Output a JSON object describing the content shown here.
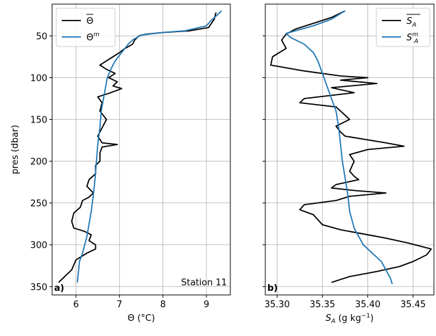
{
  "chart_data": [
    {
      "type": "line",
      "panel_tag": "a)",
      "annotation": "Station 11",
      "xlabel": "Θ (°C)",
      "ylabel": "pres (dbar)",
      "xlim": [
        5.45,
        9.55
      ],
      "ylim": [
        360,
        12
      ],
      "xticks": [
        6,
        7,
        8,
        9
      ],
      "xtick_labels": [
        "6",
        "7",
        "8",
        "9"
      ],
      "yticks": [
        50,
        100,
        150,
        200,
        250,
        300,
        350
      ],
      "ytick_labels": [
        "50",
        "100",
        "150",
        "200",
        "250",
        "300",
        "350"
      ],
      "grid": true,
      "legend_position": "top-left",
      "series": [
        {
          "name": "Θ",
          "name_overline": true,
          "name_sup": "",
          "color": "#000000",
          "points": [
            [
              9.22,
              22
            ],
            [
              9.18,
              30
            ],
            [
              9.05,
              40
            ],
            [
              8.6,
              44
            ],
            [
              8.0,
              46
            ],
            [
              7.6,
              48
            ],
            [
              7.45,
              50
            ],
            [
              7.35,
              55
            ],
            [
              7.3,
              60
            ],
            [
              7.2,
              63
            ],
            [
              7.1,
              66
            ],
            [
              7.0,
              70
            ],
            [
              6.85,
              75
            ],
            [
              6.7,
              80
            ],
            [
              6.55,
              85
            ],
            [
              6.7,
              90
            ],
            [
              6.9,
              95
            ],
            [
              6.75,
              100
            ],
            [
              6.95,
              105
            ],
            [
              6.85,
              110
            ],
            [
              7.05,
              113
            ],
            [
              6.8,
              118
            ],
            [
              6.5,
              123
            ],
            [
              6.6,
              130
            ],
            [
              6.55,
              140
            ],
            [
              6.7,
              150
            ],
            [
              6.6,
              160
            ],
            [
              6.5,
              170
            ],
            [
              6.6,
              178
            ],
            [
              6.95,
              180
            ],
            [
              6.6,
              183
            ],
            [
              6.55,
              190
            ],
            [
              6.55,
              200
            ],
            [
              6.45,
              205
            ],
            [
              6.45,
              215
            ],
            [
              6.3,
              222
            ],
            [
              6.25,
              230
            ],
            [
              6.4,
              238
            ],
            [
              6.3,
              243
            ],
            [
              6.15,
              247
            ],
            [
              6.1,
              255
            ],
            [
              5.95,
              262
            ],
            [
              5.9,
              272
            ],
            [
              5.95,
              280
            ],
            [
              6.2,
              284
            ],
            [
              6.35,
              288
            ],
            [
              6.3,
              295
            ],
            [
              6.45,
              300
            ],
            [
              6.45,
              305
            ],
            [
              6.25,
              310
            ],
            [
              6.0,
              318
            ],
            [
              5.9,
              330
            ],
            [
              5.7,
              340
            ],
            [
              5.6,
              345
            ]
          ]
        },
        {
          "name": "Θ",
          "name_overline": false,
          "name_sup": "m",
          "color": "#1f77b4",
          "points": [
            [
              9.35,
              20
            ],
            [
              9.25,
              25
            ],
            [
              9.1,
              32
            ],
            [
              9.0,
              38
            ],
            [
              8.5,
              44
            ],
            [
              8.0,
              46
            ],
            [
              7.5,
              49
            ],
            [
              7.3,
              55
            ],
            [
              7.2,
              60
            ],
            [
              7.05,
              70
            ],
            [
              6.9,
              80
            ],
            [
              6.8,
              90
            ],
            [
              6.72,
              100
            ],
            [
              6.65,
              120
            ],
            [
              6.58,
              140
            ],
            [
              6.55,
              160
            ],
            [
              6.5,
              180
            ],
            [
              6.47,
              200
            ],
            [
              6.44,
              220
            ],
            [
              6.4,
              240
            ],
            [
              6.35,
              260
            ],
            [
              6.3,
              275
            ],
            [
              6.25,
              290
            ],
            [
              6.2,
              300
            ],
            [
              6.15,
              310
            ],
            [
              6.08,
              320
            ],
            [
              6.05,
              335
            ],
            [
              6.03,
              345
            ]
          ]
        }
      ]
    },
    {
      "type": "line",
      "panel_tag": "b)",
      "annotation": "",
      "xlabel": "S_A (g kg⁻¹)",
      "xlabel_main": "S",
      "xlabel_sub": "A",
      "xlabel_rest": " (g kg",
      "xlabel_sup": "−1",
      "xlabel_close": ")",
      "ylabel": "",
      "xlim": [
        35.287,
        35.473
      ],
      "ylim": [
        360,
        12
      ],
      "xticks": [
        35.3,
        35.35,
        35.4,
        35.45
      ],
      "xtick_labels": [
        "35.30",
        "35.35",
        "35.40",
        "35.45"
      ],
      "yticks": [
        50,
        100,
        150,
        200,
        250,
        300,
        350
      ],
      "grid": true,
      "legend_position": "top-right",
      "series": [
        {
          "name": "S",
          "name_sub": "A",
          "name_overline": true,
          "name_sup": "",
          "color": "#000000",
          "points": [
            [
              35.375,
              20
            ],
            [
              35.36,
              28
            ],
            [
              35.34,
              35
            ],
            [
              35.32,
              42
            ],
            [
              35.31,
              48
            ],
            [
              35.305,
              55
            ],
            [
              35.31,
              65
            ],
            [
              35.295,
              75
            ],
            [
              35.293,
              85
            ],
            [
              35.33,
              92
            ],
            [
              35.37,
              98
            ],
            [
              35.4,
              100
            ],
            [
              35.37,
              103
            ],
            [
              35.41,
              107
            ],
            [
              35.36,
              112
            ],
            [
              35.385,
              118
            ],
            [
              35.33,
              125
            ],
            [
              35.325,
              130
            ],
            [
              35.365,
              135
            ],
            [
              35.37,
              140
            ],
            [
              35.375,
              145
            ],
            [
              35.38,
              150
            ],
            [
              35.365,
              158
            ],
            [
              35.37,
              165
            ],
            [
              35.375,
              170
            ],
            [
              35.42,
              178
            ],
            [
              35.44,
              182
            ],
            [
              35.4,
              186
            ],
            [
              35.38,
              192
            ],
            [
              35.385,
              200
            ],
            [
              35.38,
              212
            ],
            [
              35.385,
              218
            ],
            [
              35.39,
              222
            ],
            [
              35.365,
              228
            ],
            [
              35.36,
              232
            ],
            [
              35.385,
              235
            ],
            [
              35.42,
              238
            ],
            [
              35.38,
              242
            ],
            [
              35.365,
              247
            ],
            [
              35.33,
              252
            ],
            [
              35.325,
              258
            ],
            [
              35.34,
              264
            ],
            [
              35.345,
              270
            ],
            [
              35.35,
              276
            ],
            [
              35.37,
              282
            ],
            [
              35.4,
              288
            ],
            [
              35.42,
              292
            ],
            [
              35.445,
              298
            ],
            [
              35.47,
              305
            ],
            [
              35.465,
              312
            ],
            [
              35.45,
              320
            ],
            [
              35.435,
              326
            ],
            [
              35.41,
              332
            ],
            [
              35.38,
              338
            ],
            [
              35.36,
              345
            ]
          ]
        },
        {
          "name": "S",
          "name_sub": "A",
          "name_overline": false,
          "name_sup": "m",
          "color": "#1f77b4",
          "points": [
            [
              35.375,
              20
            ],
            [
              35.36,
              30
            ],
            [
              35.34,
              38
            ],
            [
              35.31,
              47
            ],
            [
              35.315,
              52
            ],
            [
              35.33,
              60
            ],
            [
              35.34,
              70
            ],
            [
              35.345,
              80
            ],
            [
              35.35,
              95
            ],
            [
              35.355,
              110
            ],
            [
              35.36,
              125
            ],
            [
              35.365,
              140
            ],
            [
              35.368,
              160
            ],
            [
              35.37,
              180
            ],
            [
              35.372,
              200
            ],
            [
              35.375,
              220
            ],
            [
              35.378,
              240
            ],
            [
              35.38,
              260
            ],
            [
              35.385,
              280
            ],
            [
              35.395,
              300
            ],
            [
              35.405,
              310
            ],
            [
              35.415,
              320
            ],
            [
              35.42,
              330
            ],
            [
              35.425,
              340
            ],
            [
              35.427,
              347
            ]
          ]
        }
      ]
    }
  ]
}
